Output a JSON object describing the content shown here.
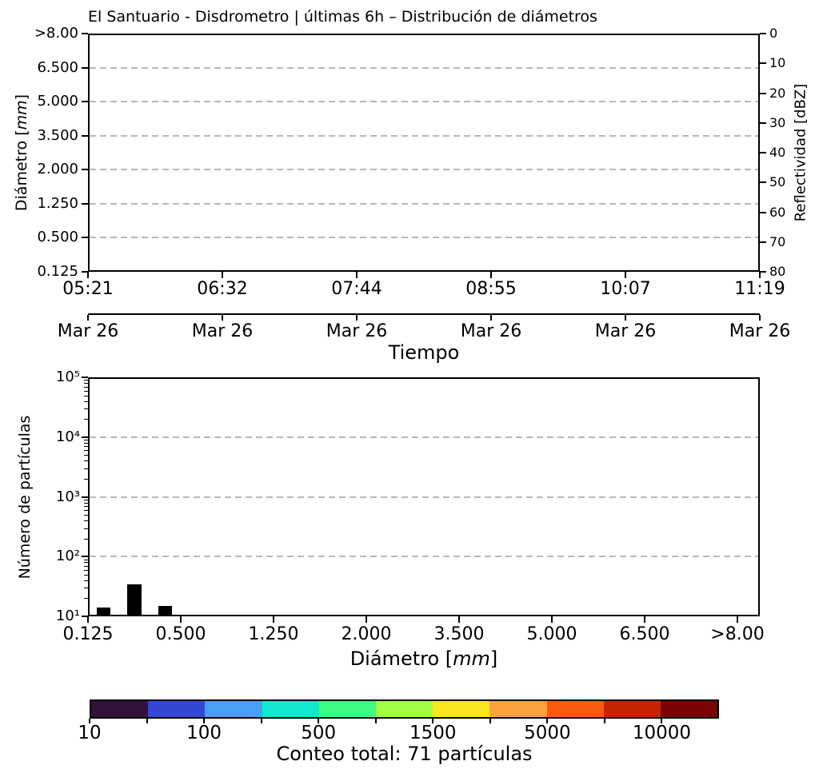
{
  "title": "El Santuario - Disdrometro | últimas 6h – Distribución de diámetros",
  "chart_data": [
    {
      "id": "diameter-time-panel",
      "type": "heatmap",
      "title": "El Santuario - Disdrometro | últimas 6h – Distribución de diámetros",
      "xlabel": "Tiempo",
      "ylabel": "Diámetro [mm]",
      "ylabel_right": "Reflectividad [dBZ]",
      "x_tick_times": [
        "05:21",
        "06:32",
        "07:44",
        "08:55",
        "10:07",
        "11:19"
      ],
      "x_tick_dates": [
        "Mar 26",
        "Mar 26",
        "Mar 26",
        "Mar 26",
        "Mar 26",
        "Mar 26"
      ],
      "y_ticks_left": [
        ">8.00",
        "6.500",
        "5.000",
        "3.500",
        "2.000",
        "1.250",
        "0.500",
        "0.125"
      ],
      "y_ticks_right": [
        "0",
        "10",
        "20",
        "30",
        "40",
        "50",
        "60",
        "70",
        "80"
      ],
      "grid": "horizontal dashed",
      "series": []
    },
    {
      "id": "size-distribution-histogram",
      "type": "bar",
      "xlabel": "Diámetro [mm]",
      "ylabel": "Número de partículas",
      "x_ticks": [
        "0.125",
        "0.500",
        "1.250",
        "2.000",
        "3.500",
        "5.000",
        "6.500",
        ">8.00"
      ],
      "y_ticks": [
        "10⁵",
        "10⁴",
        "10³",
        "10²",
        "10¹"
      ],
      "y_scale": "log",
      "ylim": [
        10,
        100000
      ],
      "grid": "horizontal dashed",
      "bar_color": "#000000",
      "bars": {
        "interval_index": 0,
        "sub_bins_per_interval": 3,
        "counts": [
          14,
          34,
          15
        ]
      }
    }
  ],
  "colorbar": {
    "segments": [
      "#30123b",
      "#3347d3",
      "#4a9ff5",
      "#12e8d0",
      "#40fb83",
      "#a0fe44",
      "#f9e720",
      "#fba23c",
      "#f75b0b",
      "#c32503",
      "#7a0403"
    ],
    "tick_labels": [
      "10",
      "",
      "100",
      "",
      "500",
      "",
      "1500",
      "",
      "5000",
      "",
      "10000"
    ],
    "label": "Conteo total: 71 partículas",
    "total_particles": 71
  },
  "style": {
    "grid_color": "#b8b8b8",
    "spine_color": "#000000",
    "background": "#ffffff",
    "text_color": "#000000"
  }
}
